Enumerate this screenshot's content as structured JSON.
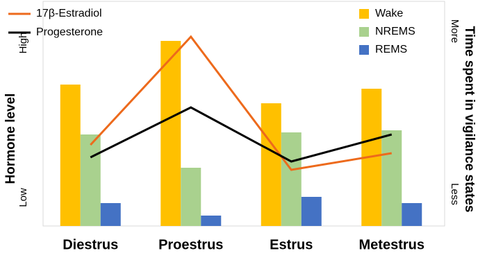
{
  "chart_data": {
    "type": "bar",
    "ylabel": "Hormone level",
    "ylabel_high": "High",
    "ylabel_low": "Low",
    "y2label": "Time spent in vigilance states",
    "y2label_high": "More",
    "y2label_low": "Less",
    "categories": [
      "Diestrus",
      "Proestrus",
      "Estrus",
      "Metestrus"
    ],
    "ylim": [
      0,
      100
    ],
    "y2lim": [
      0,
      100
    ],
    "series": [
      {
        "name": "Wake",
        "type": "bar",
        "axis": "y2",
        "color": "#ffc000",
        "values": [
          68,
          89,
          59,
          66
        ]
      },
      {
        "name": "NREMS",
        "type": "bar",
        "axis": "y2",
        "color": "#a9d18e",
        "values": [
          44,
          28,
          45,
          46
        ]
      },
      {
        "name": "REMS",
        "type": "bar",
        "axis": "y2",
        "color": "#4472c4",
        "values": [
          11,
          5,
          14,
          11
        ]
      },
      {
        "name": "17β-Estradiol",
        "type": "line",
        "color": "#ed6a1c",
        "values": [
          39,
          91,
          27,
          35
        ]
      },
      {
        "name": "Progesterone",
        "type": "line",
        "color": "#000000",
        "values": [
          33,
          57,
          31,
          44
        ]
      }
    ]
  }
}
